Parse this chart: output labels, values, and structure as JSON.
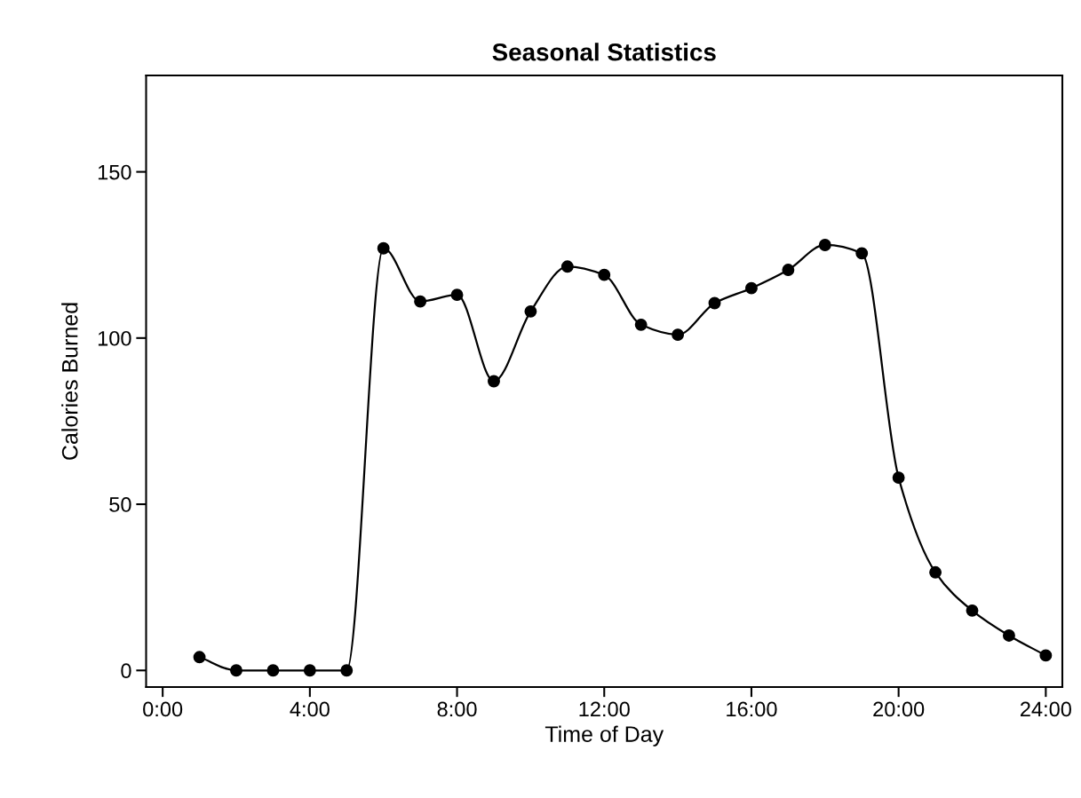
{
  "chart_data": {
    "type": "line",
    "title": "Seasonal Statistics",
    "xlabel": "Time of Day",
    "ylabel": "Calories Burned",
    "x": [
      1,
      2,
      3,
      4,
      5,
      6,
      7,
      8,
      9,
      10,
      11,
      12,
      13,
      14,
      15,
      16,
      17,
      18,
      19,
      20,
      21,
      22,
      23,
      24
    ],
    "series": [
      {
        "color": "#000000",
        "values": [
          4,
          0,
          0,
          0,
          0,
          127,
          111,
          113,
          87,
          108,
          121.5,
          119,
          104,
          101,
          110.5,
          115,
          120.5,
          128,
          125.5,
          58,
          29.5,
          18,
          10.5,
          4.5
        ]
      }
    ],
    "xlim": [
      -0.45,
      24.45
    ],
    "ylim": [
      -5,
      179
    ],
    "xticks": [
      {
        "value": 0,
        "label": "0:00"
      },
      {
        "value": 4,
        "label": "4:00"
      },
      {
        "value": 8,
        "label": "8:00"
      },
      {
        "value": 12,
        "label": "12:00"
      },
      {
        "value": 16,
        "label": "16:00"
      },
      {
        "value": 20,
        "label": "20:00"
      },
      {
        "value": 24,
        "label": "24:00"
      }
    ],
    "yticks": [
      0,
      50,
      100,
      150
    ],
    "marker": "circle",
    "line_style": "solid",
    "grid": false
  }
}
